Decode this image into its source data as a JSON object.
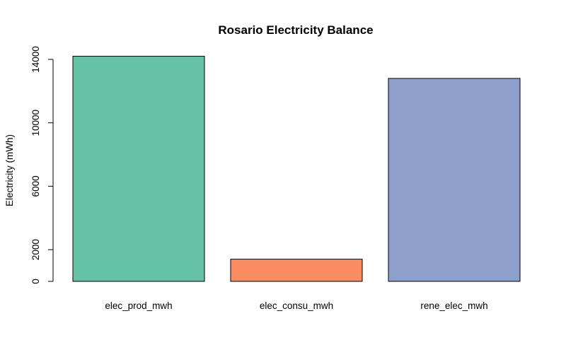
{
  "chart_data": {
    "type": "bar",
    "title": "Rosario Electricity Balance",
    "xlabel": "",
    "ylabel": "Electricity (mWh)",
    "categories": [
      "elec_prod_mwh",
      "elec_consu_mwh",
      "rene_elec_mwh"
    ],
    "values": [
      14200,
      1400,
      12800
    ],
    "colors": [
      "#66C2A5",
      "#FC8D62",
      "#8DA0CB"
    ],
    "bar_border_color": "#000000",
    "ylim": [
      0,
      14000
    ],
    "yticks": [
      0,
      2000,
      6000,
      10000,
      14000
    ],
    "grid": false,
    "legend": "none"
  }
}
